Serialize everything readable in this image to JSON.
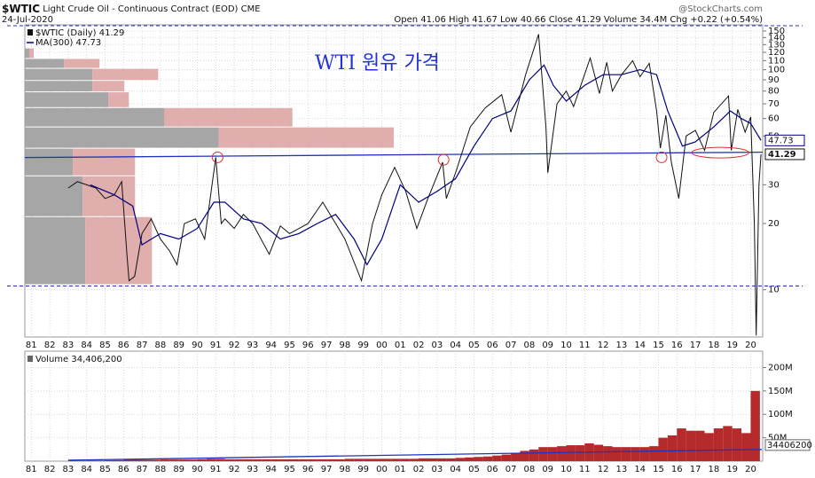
{
  "chart_data": [
    {
      "type": "line",
      "title": "$WTIC",
      "subtitle": "Light Crude Oil - Continuous Contract (EOD)",
      "exchange": "CME",
      "date": "24-Jul-2020",
      "quote": "Open 41.06  High 41.67  Low 40.66  Close 41.29  Volume 34.4M  Chg +0.22 (+0.54%)",
      "source": "@StockCharts.com",
      "annotation": "WTI 원유 가격",
      "log_scale": true,
      "grid": true,
      "xlim": [
        1980.65,
        2020.65
      ],
      "ylim": [
        6.1,
        160
      ],
      "yticks": [
        10,
        20,
        30,
        50,
        60,
        70,
        80,
        90,
        100,
        110,
        120,
        130,
        140,
        150
      ],
      "xticks": [
        {
          "value": 1981,
          "label": "81"
        },
        {
          "value": 1982,
          "label": "82"
        },
        {
          "value": 1983,
          "label": "83"
        },
        {
          "value": 1984,
          "label": "84"
        },
        {
          "value": 1985,
          "label": "85"
        },
        {
          "value": 1986,
          "label": "86"
        },
        {
          "value": 1987,
          "label": "87"
        },
        {
          "value": 1988,
          "label": "88"
        },
        {
          "value": 1989,
          "label": "89"
        },
        {
          "value": 1990,
          "label": "90"
        },
        {
          "value": 1991,
          "label": "91"
        },
        {
          "value": 1992,
          "label": "92"
        },
        {
          "value": 1993,
          "label": "93"
        },
        {
          "value": 1994,
          "label": "94"
        },
        {
          "value": 1995,
          "label": "95"
        },
        {
          "value": 1996,
          "label": "96"
        },
        {
          "value": 1997,
          "label": "97"
        },
        {
          "value": 1998,
          "label": "98"
        },
        {
          "value": 1999,
          "label": "99"
        },
        {
          "value": 2000,
          "label": "00"
        },
        {
          "value": 2001,
          "label": "01"
        },
        {
          "value": 2002,
          "label": "02"
        },
        {
          "value": 2003,
          "label": "03"
        },
        {
          "value": 2004,
          "label": "04"
        },
        {
          "value": 2005,
          "label": "05"
        },
        {
          "value": 2006,
          "label": "06"
        },
        {
          "value": 2007,
          "label": "07"
        },
        {
          "value": 2008,
          "label": "08"
        },
        {
          "value": 2009,
          "label": "09"
        },
        {
          "value": 2010,
          "label": "10"
        },
        {
          "value": 2011,
          "label": "11"
        },
        {
          "value": 2012,
          "label": "12"
        },
        {
          "value": 2013,
          "label": "13"
        },
        {
          "value": 2014,
          "label": "14"
        },
        {
          "value": 2015,
          "label": "15"
        },
        {
          "value": 2016,
          "label": "16"
        },
        {
          "value": 2017,
          "label": "17"
        },
        {
          "value": 2018,
          "label": "18"
        },
        {
          "value": 2019,
          "label": "19"
        },
        {
          "value": 2020,
          "label": "20"
        }
      ],
      "series": [
        {
          "name": "$WTIC (Daily) 41.29",
          "color": "#111111",
          "x": [
            1983.0,
            1983.5,
            1984.0,
            1984.5,
            1985.0,
            1985.5,
            1985.9,
            1986.2,
            1986.3,
            1986.6,
            1987.0,
            1987.5,
            1988.0,
            1988.5,
            1988.9,
            1989.3,
            1989.9,
            1990.4,
            1991.0,
            1991.3,
            1991.5,
            1992.0,
            1992.5,
            1993.0,
            1993.9,
            1994.5,
            1995.0,
            1996.0,
            1996.8,
            1997.5,
            1998.0,
            1998.9,
            1999.5,
            2000.0,
            2000.7,
            2001.3,
            2001.9,
            2002.5,
            2003.3,
            2003.5,
            2004.0,
            2004.8,
            2005.6,
            2006.5,
            2007.0,
            2007.8,
            2008.5,
            2008.9,
            2009.0,
            2009.5,
            2010.0,
            2010.4,
            2011.3,
            2011.8,
            2012.2,
            2012.5,
            2013.0,
            2013.6,
            2014.0,
            2014.5,
            2014.9,
            2015.1,
            2015.4,
            2015.7,
            2016.1,
            2016.5,
            2017.0,
            2017.5,
            2018.0,
            2018.8,
            2018.95,
            2019.3,
            2019.7,
            2020.0,
            2020.2,
            2020.3,
            2020.45,
            2020.56
          ],
          "values": [
            29,
            31,
            30,
            29,
            26,
            27,
            31,
            14,
            11,
            11.5,
            18,
            21,
            17,
            15,
            13,
            20,
            21,
            17,
            40,
            20,
            21,
            19,
            22,
            20,
            14.5,
            19.5,
            18,
            20,
            25,
            20,
            17,
            11,
            20,
            27,
            36,
            28,
            19,
            26,
            38,
            26,
            34,
            55,
            67,
            77,
            52,
            95,
            145,
            55,
            34,
            70,
            80,
            68,
            113,
            78,
            108,
            80,
            95,
            110,
            93,
            107,
            65,
            44,
            62,
            38,
            26,
            50,
            53,
            43,
            64,
            76,
            43,
            66,
            52,
            61,
            20,
            6.2,
            30,
            41.29
          ]
        },
        {
          "name": "MA(300) 47.73",
          "color": "#000080",
          "x": [
            1984.2,
            1985.5,
            1986.5,
            1987.0,
            1987.5,
            1988.0,
            1989.0,
            1990.0,
            1990.9,
            1991.5,
            1992.5,
            1993.5,
            1994.5,
            1995.5,
            1996.5,
            1997.5,
            1998.5,
            1999.2,
            2000.0,
            2001.0,
            2002.0,
            2003.0,
            2004.0,
            2005.0,
            2006.0,
            2007.0,
            2008.0,
            2008.8,
            2009.3,
            2010.0,
            2011.0,
            2012.0,
            2013.0,
            2014.0,
            2014.9,
            2015.5,
            2016.3,
            2017.0,
            2018.0,
            2018.9,
            2019.5,
            2020.0,
            2020.56
          ],
          "values": [
            30,
            27,
            24,
            16,
            17,
            18,
            17,
            19,
            25,
            25,
            21,
            20,
            17,
            18,
            20,
            22,
            17,
            13,
            17,
            30,
            25,
            28,
            32,
            45,
            60,
            65,
            90,
            105,
            85,
            72,
            85,
            95,
            95,
            100,
            95,
            65,
            45,
            47,
            55,
            65,
            60,
            57,
            47.73
          ]
        }
      ],
      "volume_by_price": {
        "bins": [
          10.5,
          21.4,
          32.8,
          43.8,
          54.7,
          67,
          79,
          89,
          101,
          112,
          125
        ],
        "up": [
          68,
          65,
          54,
          218,
          157,
          94,
          76,
          76,
          44,
          5
        ],
        "down": [
          75,
          59,
          70,
          197,
          144,
          23,
          36,
          74,
          40,
          5
        ],
        "up_color": "#a6a6a6",
        "down_color": "#dca0a0"
      },
      "trendline": {
        "x": [
          1980.65,
          2020.65
        ],
        "y": [
          39.9,
          42.2
        ],
        "color": "#2233bb"
      },
      "support_levels": [
        10.4
      ],
      "circled_points": [
        {
          "x": 1991.1,
          "y": 40
        },
        {
          "x": 2003.35,
          "y": 39
        },
        {
          "x": 2015.17,
          "y": 40
        }
      ],
      "circled_range": {
        "x": [
          2016.8,
          2019.9
        ],
        "y": 42
      }
    },
    {
      "type": "bar",
      "grid": true,
      "xlim": [
        1980.65,
        2020.65
      ],
      "ylim": [
        0,
        235000000
      ],
      "yticks": [
        {
          "value": 50000000,
          "label": "50M"
        },
        {
          "value": 100000000,
          "label": "100M"
        },
        {
          "value": 150000000,
          "label": "150M"
        },
        {
          "value": 200000000,
          "label": "200M"
        }
      ],
      "xticks": [
        {
          "value": 1981,
          "label": "81"
        },
        {
          "value": 1982,
          "label": "82"
        },
        {
          "value": 1983,
          "label": "83"
        },
        {
          "value": 1984,
          "label": "84"
        },
        {
          "value": 1985,
          "label": "85"
        },
        {
          "value": 1986,
          "label": "86"
        },
        {
          "value": 1987,
          "label": "87"
        },
        {
          "value": 1988,
          "label": "88"
        },
        {
          "value": 1989,
          "label": "89"
        },
        {
          "value": 1990,
          "label": "90"
        },
        {
          "value": 1991,
          "label": "91"
        },
        {
          "value": 1992,
          "label": "92"
        },
        {
          "value": 1993,
          "label": "93"
        },
        {
          "value": 1994,
          "label": "94"
        },
        {
          "value": 1995,
          "label": "95"
        },
        {
          "value": 1996,
          "label": "96"
        },
        {
          "value": 1997,
          "label": "97"
        },
        {
          "value": 1998,
          "label": "98"
        },
        {
          "value": 1999,
          "label": "99"
        },
        {
          "value": 2000,
          "label": "00"
        },
        {
          "value": 2001,
          "label": "01"
        },
        {
          "value": 2002,
          "label": "02"
        },
        {
          "value": 2003,
          "label": "03"
        },
        {
          "value": 2004,
          "label": "04"
        },
        {
          "value": 2005,
          "label": "05"
        },
        {
          "value": 2006,
          "label": "06"
        },
        {
          "value": 2007,
          "label": "07"
        },
        {
          "value": 2008,
          "label": "08"
        },
        {
          "value": 2009,
          "label": "09"
        },
        {
          "value": 2010,
          "label": "10"
        },
        {
          "value": 2011,
          "label": "11"
        },
        {
          "value": 2012,
          "label": "12"
        },
        {
          "value": 2013,
          "label": "13"
        },
        {
          "value": 2014,
          "label": "14"
        },
        {
          "value": 2015,
          "label": "15"
        },
        {
          "value": 2016,
          "label": "16"
        },
        {
          "value": 2017,
          "label": "17"
        },
        {
          "value": 2018,
          "label": "18"
        },
        {
          "value": 2019,
          "label": "19"
        },
        {
          "value": 2020,
          "label": "20"
        }
      ],
      "bar_width": 0.5,
      "series": [
        {
          "name": "Volume 34,406,200",
          "color": "#b52a2a",
          "x": [
            1983.25,
            1983.75,
            1984.25,
            1984.75,
            1985.25,
            1985.75,
            1986.25,
            1986.75,
            1987.25,
            1987.75,
            1988.25,
            1988.75,
            1989.25,
            1989.75,
            1990.25,
            1990.75,
            1991.25,
            1991.75,
            1992.25,
            1992.75,
            1993.25,
            1993.75,
            1994.25,
            1994.75,
            1995.25,
            1995.75,
            1996.25,
            1996.75,
            1997.25,
            1997.75,
            1998.25,
            1998.75,
            1999.25,
            1999.75,
            2000.25,
            2000.75,
            2001.25,
            2001.75,
            2002.25,
            2002.75,
            2003.25,
            2003.75,
            2004.25,
            2004.75,
            2005.25,
            2005.75,
            2006.25,
            2006.75,
            2007.25,
            2007.75,
            2008.25,
            2008.75,
            2009.25,
            2009.75,
            2010.25,
            2010.75,
            2011.25,
            2011.75,
            2012.25,
            2012.75,
            2013.25,
            2013.75,
            2014.25,
            2014.75,
            2015.25,
            2015.75,
            2016.25,
            2016.75,
            2017.25,
            2017.75,
            2018.25,
            2018.75,
            2019.25,
            2019.75,
            2020.25
          ],
          "values": [
            1000000,
            1000000,
            1500000,
            1500000,
            2000000,
            2000000,
            3000000,
            3000000,
            3000000,
            3000000,
            3500000,
            3500000,
            3500000,
            3500000,
            4000000,
            5000000,
            5000000,
            4000000,
            4000000,
            4000000,
            4000000,
            4000000,
            4000000,
            4000000,
            4000000,
            4000000,
            4000000,
            4000000,
            4000000,
            4000000,
            5000000,
            5000000,
            5000000,
            5000000,
            5000000,
            5000000,
            5000000,
            5000000,
            6000000,
            6000000,
            6000000,
            6000000,
            7000000,
            8000000,
            9000000,
            10000000,
            12000000,
            14000000,
            18000000,
            22000000,
            25000000,
            30000000,
            30000000,
            32000000,
            34000000,
            34000000,
            38000000,
            35000000,
            32000000,
            30000000,
            30000000,
            30000000,
            30000000,
            32000000,
            50000000,
            55000000,
            70000000,
            65000000,
            65000000,
            60000000,
            70000000,
            75000000,
            70000000,
            60000000,
            150000000
          ]
        }
      ],
      "latest_volume": 34406200,
      "trendline": {
        "x": [
          1983.0,
          2020.6
        ],
        "y": [
          2000000,
          25000000
        ],
        "color": "#2233bb"
      }
    }
  ]
}
